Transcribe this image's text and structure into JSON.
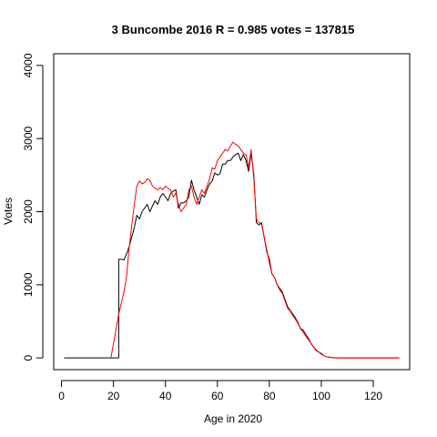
{
  "chart_data": {
    "type": "line",
    "title": "3 Buncombe 2016 R = 0.985 votes = 137815",
    "xlabel": "Age in 2020",
    "ylabel": "Votes",
    "xlim": [
      -3,
      134
    ],
    "ylim": [
      -160,
      4160
    ],
    "x_ticks": [
      0,
      20,
      40,
      60,
      80,
      100,
      120
    ],
    "y_ticks": [
      0,
      1000,
      2000,
      3000,
      4000
    ],
    "grid": false,
    "legend": "none",
    "colors": {
      "black_series": "#000000",
      "red_series": "#ff0000"
    },
    "series": [
      {
        "color": "#000000",
        "x": [
          1,
          22,
          22,
          23,
          24,
          25,
          26,
          27,
          28,
          29,
          30,
          31,
          32,
          33,
          34,
          35,
          36,
          37,
          38,
          39,
          40,
          41,
          42,
          43,
          44,
          45,
          46,
          47,
          48,
          49,
          50,
          51,
          52,
          53,
          54,
          55,
          56,
          57,
          58,
          59,
          60,
          61,
          62,
          63,
          64,
          65,
          66,
          67,
          68,
          69,
          70,
          71,
          72,
          73,
          74,
          75,
          76,
          77,
          78,
          79,
          80,
          81,
          82,
          83,
          84,
          85,
          86,
          87,
          88,
          89,
          90,
          91,
          92,
          93,
          94,
          95,
          96,
          97,
          98,
          99,
          100,
          101,
          102,
          103,
          104,
          105,
          106,
          107,
          108,
          110,
          115,
          120,
          125,
          130
        ],
        "y": [
          0,
          0,
          1350,
          1350,
          1340,
          1420,
          1520,
          1650,
          1780,
          1950,
          1900,
          2000,
          2050,
          2100,
          2000,
          2080,
          2150,
          2100,
          2200,
          2250,
          2200,
          2150,
          2250,
          2280,
          2300,
          2050,
          2120,
          2120,
          2150,
          2200,
          2430,
          2300,
          2200,
          2100,
          2230,
          2200,
          2300,
          2380,
          2420,
          2530,
          2500,
          2520,
          2650,
          2650,
          2700,
          2700,
          2750,
          2780,
          2800,
          2700,
          2780,
          2700,
          2550,
          2800,
          2500,
          1850,
          1820,
          1850,
          1650,
          1450,
          1350,
          1150,
          1100,
          1000,
          950,
          900,
          800,
          700,
          650,
          600,
          550,
          480,
          400,
          380,
          320,
          270,
          200,
          150,
          100,
          80,
          60,
          30,
          15,
          10,
          5,
          3,
          0,
          0,
          0,
          0,
          0,
          0,
          0,
          0
        ]
      },
      {
        "color": "#ff0000",
        "x": [
          19,
          22,
          24,
          25,
          26,
          27,
          28,
          29,
          30,
          31,
          32,
          33,
          34,
          35,
          36,
          37,
          38,
          39,
          40,
          41,
          42,
          43,
          44,
          45,
          46,
          47,
          48,
          49,
          50,
          51,
          52,
          53,
          54,
          55,
          56,
          57,
          58,
          59,
          60,
          61,
          62,
          63,
          64,
          65,
          66,
          67,
          68,
          69,
          70,
          71,
          72,
          73,
          74,
          75,
          76,
          77,
          78,
          79,
          80,
          81,
          82,
          83,
          84,
          85,
          86,
          87,
          88,
          89,
          90,
          91,
          92,
          93,
          94,
          95,
          96,
          97,
          98,
          99,
          100,
          101,
          102,
          103,
          104,
          105,
          106,
          107,
          108,
          110,
          115,
          120,
          125,
          130
        ],
        "y": [
          0,
          600,
          900,
          1100,
          1500,
          1800,
          2100,
          2350,
          2420,
          2380,
          2400,
          2450,
          2430,
          2350,
          2320,
          2300,
          2330,
          2300,
          2350,
          2320,
          2300,
          2200,
          2250,
          2100,
          2000,
          2050,
          2100,
          2300,
          2350,
          2200,
          2100,
          2200,
          2300,
          2250,
          2350,
          2450,
          2600,
          2580,
          2700,
          2750,
          2800,
          2850,
          2830,
          2900,
          2950,
          2920,
          2900,
          2850,
          2800,
          2780,
          2600,
          2850,
          2450,
          1900,
          1850,
          1830,
          1650,
          1480,
          1300,
          1150,
          1100,
          1000,
          930,
          880,
          780,
          680,
          640,
          580,
          530,
          470,
          400,
          350,
          300,
          250,
          200,
          150,
          110,
          80,
          50,
          30,
          15,
          10,
          5,
          0,
          0,
          0,
          0,
          0,
          0,
          0,
          0,
          0
        ]
      }
    ]
  }
}
